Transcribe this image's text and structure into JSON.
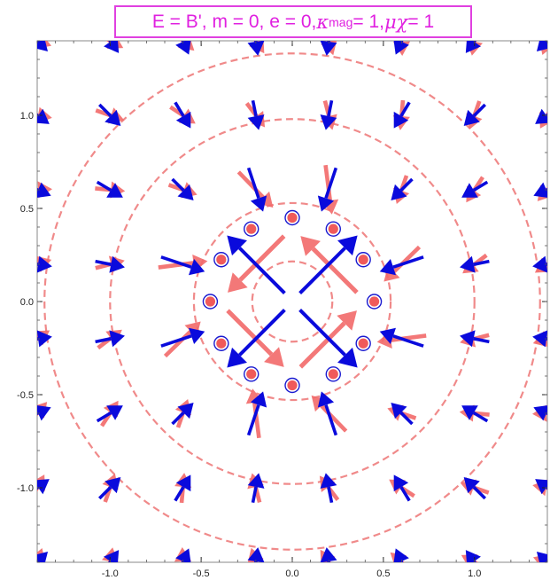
{
  "title": {
    "prefix": "E = B', m = 0, e = 0, ",
    "kappa_symbol": "κ",
    "kappa_sub": "mag",
    "kappa_val": " = 1, ",
    "mu_chi": "μχ",
    "mu_chi_val": " = 1"
  },
  "colors": {
    "title": "#e020e0",
    "blue_arrows": "#0a0adc",
    "red_arrows": "#f26a6a",
    "contours": "#f08a8a",
    "charge_ring": "#1a1ad0",
    "charge_fill": "#f05a5a"
  },
  "chart_data": {
    "type": "vector-field",
    "title": "E = B', m = 0, e = 0, κmag = 1, μχ = 1",
    "xlim": [
      -1.4,
      1.4
    ],
    "ylim": [
      -1.4,
      1.4
    ],
    "x_ticks": [
      "-1.0",
      "-0.5",
      "0.0",
      "0.5",
      "1.0"
    ],
    "x_tick_values": [
      -1.0,
      -0.5,
      0.0,
      0.5,
      1.0
    ],
    "y_ticks": [
      "1.0",
      "0.5",
      "0.0",
      "-0.5",
      "-1.0"
    ],
    "y_tick_values": [
      1.0,
      0.5,
      0.0,
      -0.5,
      -1.0
    ],
    "arrow_grid": [
      -1.4,
      -1.0,
      -0.6,
      -0.2,
      0.2,
      0.6,
      1.0,
      1.4
    ],
    "contour_radii": [
      0.22,
      0.54,
      1.0,
      1.36
    ],
    "charge_ring_radius": 0.45,
    "charge_count": 12
  }
}
